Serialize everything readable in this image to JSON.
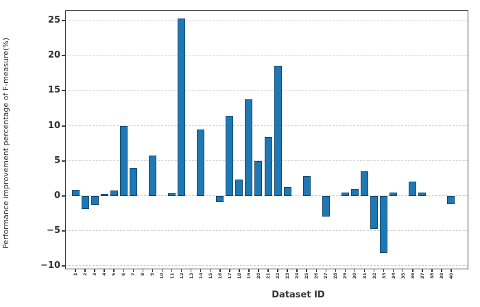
{
  "chart_data": {
    "type": "bar",
    "title": "",
    "xlabel": "Dataset ID",
    "ylabel": "Performance improvement percentage of F-measure(%)",
    "categories": [
      "1",
      "2",
      "3",
      "4",
      "5",
      "6",
      "7",
      "8",
      "9",
      "10",
      "11",
      "12",
      "13",
      "14",
      "15",
      "16",
      "17",
      "18",
      "19",
      "20",
      "21",
      "22",
      "23",
      "24",
      "25",
      "26",
      "27",
      "28",
      "29",
      "30",
      "31",
      "32",
      "33",
      "34",
      "35",
      "36",
      "37",
      "38",
      "39",
      "40"
    ],
    "values": [
      0.9,
      -1.9,
      -1.3,
      0.3,
      0.8,
      10.0,
      4.0,
      0,
      5.7,
      0,
      0.4,
      25.3,
      0,
      9.5,
      0,
      -0.9,
      11.4,
      2.3,
      13.8,
      5.0,
      8.4,
      18.6,
      1.2,
      0,
      2.8,
      0,
      -3.0,
      0,
      0.5,
      1.0,
      3.5,
      -4.7,
      -8.2,
      0.5,
      0,
      2.0,
      0.5,
      0,
      0,
      -1.2
    ],
    "yticks": [
      -10,
      -5,
      0,
      5,
      10,
      15,
      20,
      25
    ],
    "ylim": [
      -10.5,
      26.5
    ],
    "grid": "horizontal-dashed",
    "legend": "none",
    "bar_color": "#1f77b4",
    "bar_edge_color": "#114b6d",
    "axis_color": "#3d3d3d",
    "grid_color": "#cccccc",
    "background": "#ffffff"
  }
}
